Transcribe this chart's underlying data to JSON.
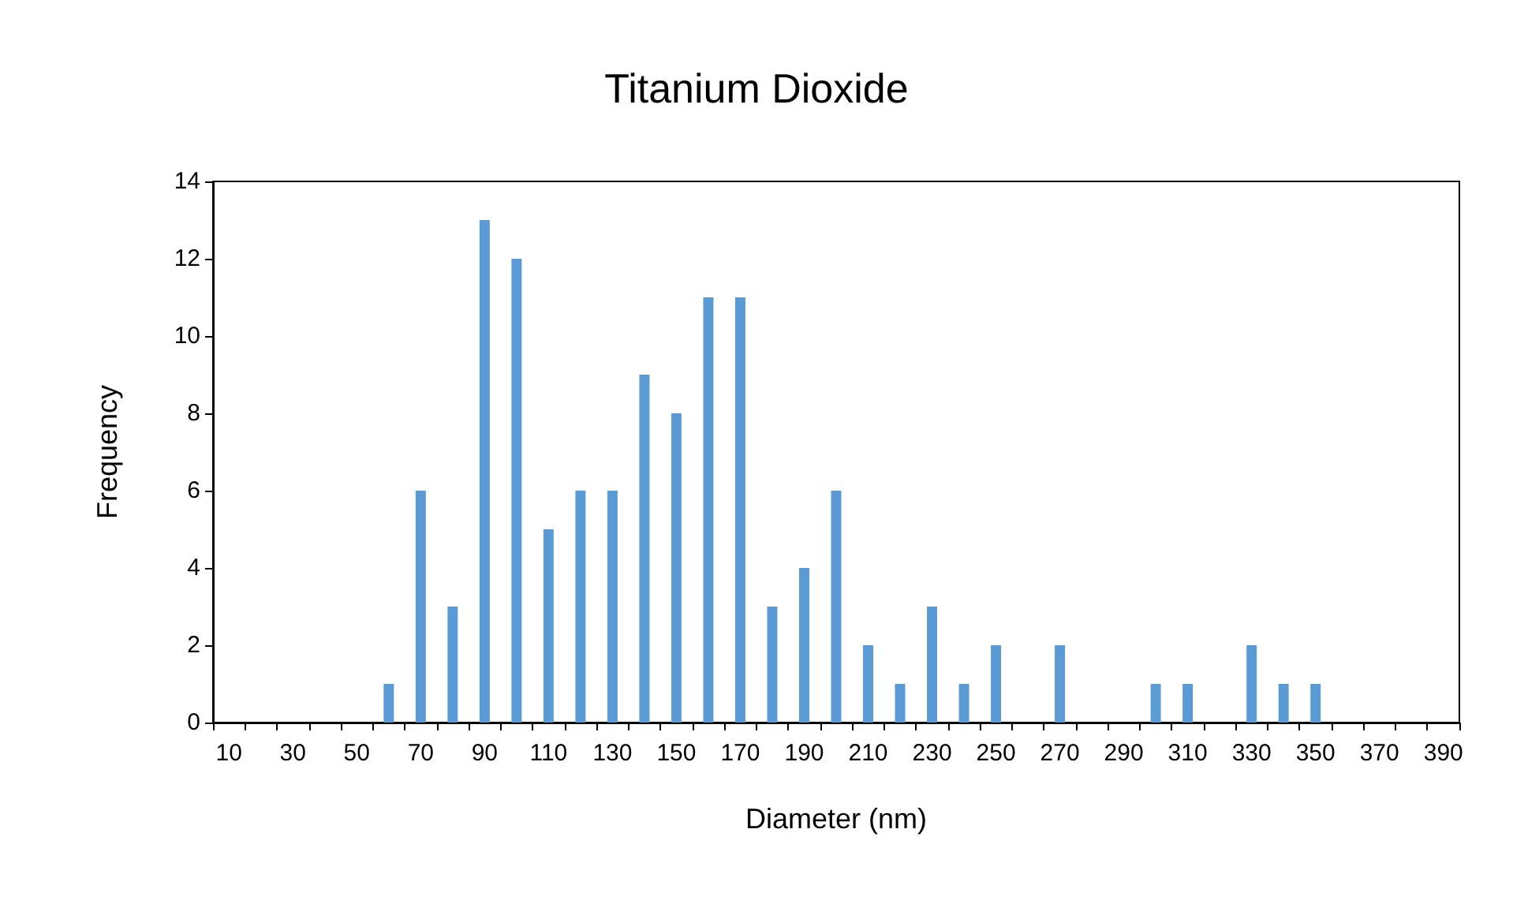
{
  "chart_data": {
    "type": "bar",
    "title": "Titanium Dioxide",
    "xlabel": "Diameter (nm)",
    "ylabel": "Frequency",
    "categories": [
      "10",
      null,
      "30",
      null,
      "50",
      null,
      "70",
      null,
      "90",
      null,
      "110",
      null,
      "130",
      null,
      "150",
      null,
      "170",
      null,
      "190",
      null,
      "210",
      null,
      "230",
      null,
      "250",
      null,
      "270",
      null,
      "290",
      null,
      "310",
      null,
      "330",
      null,
      "350",
      null,
      "370",
      null,
      "390"
    ],
    "values": [
      0,
      0,
      0,
      0,
      0,
      1,
      6,
      3,
      13,
      12,
      5,
      6,
      6,
      9,
      8,
      11,
      11,
      3,
      4,
      6,
      2,
      1,
      3,
      1,
      2,
      0,
      2,
      0,
      0,
      1,
      1,
      0,
      2,
      1,
      1,
      0,
      0,
      0,
      0
    ],
    "color": "#5b9bd5",
    "ylim": [
      0,
      14
    ],
    "yticks": [
      0,
      2,
      4,
      6,
      8,
      10,
      12,
      14
    ],
    "grid": false
  }
}
